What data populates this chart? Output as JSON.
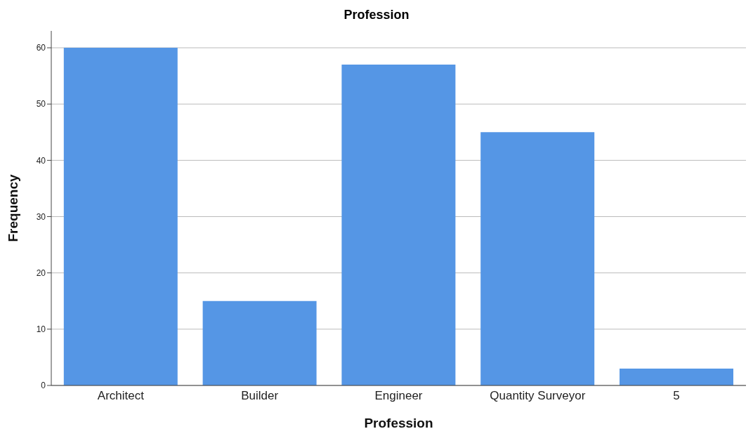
{
  "chart_data": {
    "type": "bar",
    "title": "Profession",
    "xlabel": "Profession",
    "ylabel": "Frequency",
    "categories": [
      "Architect",
      "Builder",
      "Engineer",
      "Quantity Surveyor",
      "5"
    ],
    "values": [
      60,
      15,
      57,
      45,
      3
    ],
    "color": "#5596e5",
    "ylim": [
      0,
      63
    ],
    "yticks": [
      0,
      10,
      20,
      30,
      40,
      50,
      60
    ],
    "grid": "y"
  }
}
